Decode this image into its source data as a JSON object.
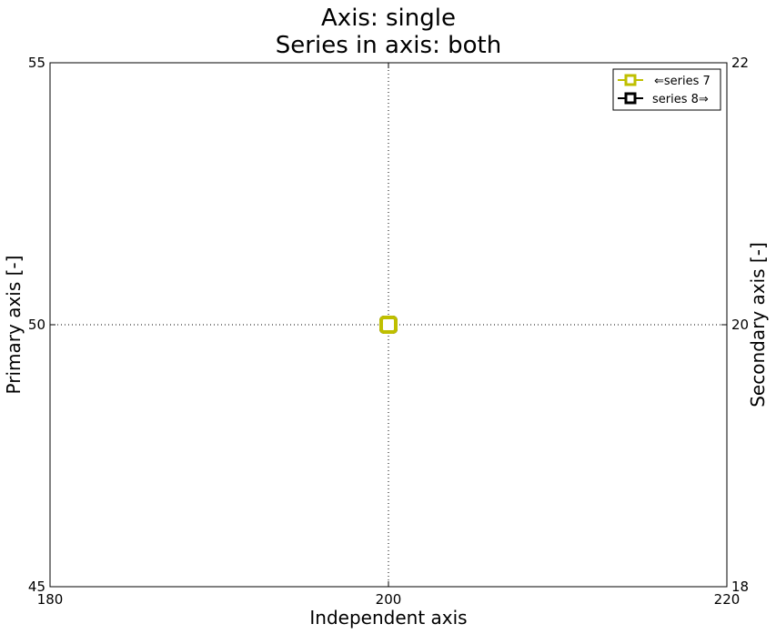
{
  "chart_data": {
    "type": "scatter",
    "title_line1": "Axis: single",
    "title_line2": "Series in axis: both",
    "xlabel": "Independent axis",
    "ylabel": "Primary axis [-]",
    "y2label": "Secondary axis [-]",
    "xlim": [
      180,
      220
    ],
    "ylim": [
      45,
      55
    ],
    "y2lim": [
      18,
      22
    ],
    "xticks": [
      "180",
      "200",
      "220"
    ],
    "yticks": [
      "45",
      "50",
      "55"
    ],
    "y2ticks": [
      "18",
      "20",
      "22"
    ],
    "grid": "dotted",
    "legend_position": "top-right",
    "series": [
      {
        "name": "⇐series 7",
        "axis": "primary",
        "color": "#bfbf00",
        "marker": "square",
        "x": [
          200
        ],
        "y": [
          50
        ]
      },
      {
        "name": "series 8⇒",
        "axis": "secondary",
        "color": "#000000",
        "marker": "square",
        "x": [
          200
        ],
        "y": [
          20
        ]
      }
    ]
  }
}
